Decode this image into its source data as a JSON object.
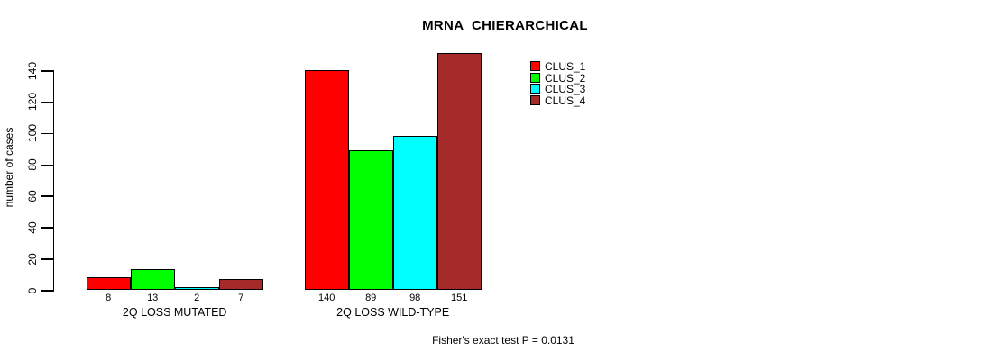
{
  "chart_data": {
    "type": "bar",
    "title": "MRNA_CHIERARCHICAL",
    "ylabel": "number of cases",
    "xlabel": "",
    "annotation": "Fisher's exact test P = 0.0131",
    "ylim": [
      0,
      151
    ],
    "y_ticks": [
      0,
      20,
      40,
      60,
      80,
      100,
      120,
      140
    ],
    "grid": false,
    "legend_position": "top-right",
    "bar_value_labels_shown": true,
    "categories": [
      "2Q LOSS MUTATED",
      "2Q LOSS WILD-TYPE"
    ],
    "series": [
      {
        "name": "CLUS_1",
        "color": "#FF0000",
        "values": [
          8,
          140
        ]
      },
      {
        "name": "CLUS_2",
        "color": "#00FF00",
        "values": [
          13,
          89
        ]
      },
      {
        "name": "CLUS_3",
        "color": "#00FFFF",
        "values": [
          2,
          98
        ]
      },
      {
        "name": "CLUS_4",
        "color": "#A52A2A",
        "values": [
          7,
          151
        ]
      }
    ],
    "groups": [
      {
        "label": "2Q LOSS MUTATED",
        "values": [
          8,
          13,
          2,
          7
        ]
      },
      {
        "label": "2Q LOSS WILD-TYPE",
        "values": [
          140,
          89,
          98,
          151
        ]
      }
    ]
  }
}
